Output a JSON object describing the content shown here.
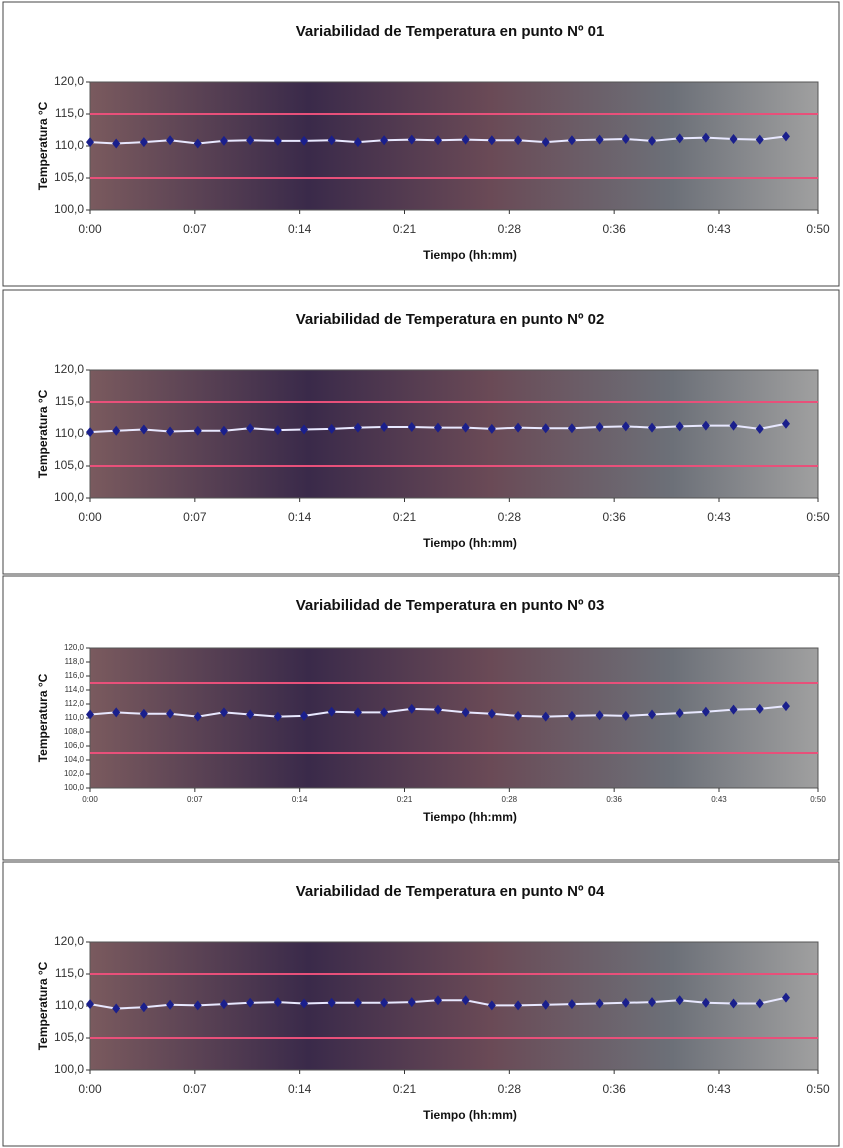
{
  "chart_data": [
    {
      "type": "line",
      "title": "Variabilidad de Temperatura en punto Nº 01",
      "y_label": "Temperatura °C",
      "x_label": "Tiempo (hh:mm)",
      "x": [
        0,
        1.8,
        3.7,
        5.5,
        7.4,
        9.2,
        11,
        12.9,
        14.7,
        16.6,
        18.4,
        20.2,
        22.1,
        23.9,
        25.8,
        27.6,
        29.4,
        31.3,
        33.1,
        35,
        36.8,
        38.6,
        40.5,
        42.3,
        44.2,
        46,
        47.8
      ],
      "values": [
        110.6,
        110.4,
        110.6,
        110.9,
        110.4,
        110.8,
        110.9,
        110.8,
        110.8,
        110.9,
        110.6,
        110.9,
        111.0,
        110.9,
        111.0,
        110.9,
        110.9,
        110.6,
        110.9,
        111.0,
        111.1,
        110.8,
        111.2,
        111.3,
        111.1,
        111.0,
        111.5
      ],
      "color": "#1a1f8c",
      "reference_lines": [
        105,
        115
      ],
      "reference_color": "#e8507a",
      "xlim": [
        0,
        50
      ],
      "xticks": [
        {
          "value": 0,
          "label": "0:00"
        },
        {
          "value": 7.2,
          "label": "0:07"
        },
        {
          "value": 14.4,
          "label": "0:14"
        },
        {
          "value": 21.6,
          "label": "0:21"
        },
        {
          "value": 28.8,
          "label": "0:28"
        },
        {
          "value": 36,
          "label": "0:36"
        },
        {
          "value": 43.2,
          "label": "0:43"
        },
        {
          "value": 50,
          "label": "0:50"
        }
      ],
      "ylim": [
        100,
        120
      ],
      "yticks": [
        {
          "value": 100,
          "label": "100,0"
        },
        {
          "value": 105,
          "label": "105,0"
        },
        {
          "value": 110,
          "label": "110,0"
        },
        {
          "value": 115,
          "label": "115,0"
        },
        {
          "value": 120,
          "label": "120,0"
        }
      ]
    },
    {
      "type": "line",
      "title": "Variabilidad de Temperatura en punto Nº 02",
      "y_label": "Temperatura °C",
      "x_label": "Tiempo (hh:mm)",
      "x": [
        0,
        1.8,
        3.7,
        5.5,
        7.4,
        9.2,
        11,
        12.9,
        14.7,
        16.6,
        18.4,
        20.2,
        22.1,
        23.9,
        25.8,
        27.6,
        29.4,
        31.3,
        33.1,
        35,
        36.8,
        38.6,
        40.5,
        42.3,
        44.2,
        46,
        47.8
      ],
      "values": [
        110.3,
        110.5,
        110.7,
        110.4,
        110.5,
        110.5,
        110.9,
        110.6,
        110.7,
        110.8,
        111.0,
        111.1,
        111.1,
        111.0,
        111.0,
        110.8,
        111.0,
        110.9,
        110.9,
        111.1,
        111.2,
        111.0,
        111.2,
        111.3,
        111.3,
        110.8,
        111.6
      ],
      "color": "#1a1f8c",
      "reference_lines": [
        105,
        115
      ],
      "reference_color": "#e8507a",
      "xlim": [
        0,
        50
      ],
      "xticks": [
        {
          "value": 0,
          "label": "0:00"
        },
        {
          "value": 7.2,
          "label": "0:07"
        },
        {
          "value": 14.4,
          "label": "0:14"
        },
        {
          "value": 21.6,
          "label": "0:21"
        },
        {
          "value": 28.8,
          "label": "0:28"
        },
        {
          "value": 36,
          "label": "0:36"
        },
        {
          "value": 43.2,
          "label": "0:43"
        },
        {
          "value": 50,
          "label": "0:50"
        }
      ],
      "ylim": [
        100,
        120
      ],
      "yticks": [
        {
          "value": 100,
          "label": "100,0"
        },
        {
          "value": 105,
          "label": "105,0"
        },
        {
          "value": 110,
          "label": "110,0"
        },
        {
          "value": 115,
          "label": "115,0"
        },
        {
          "value": 120,
          "label": "120,0"
        }
      ]
    },
    {
      "type": "line",
      "title": "Variabilidad de Temperatura en punto Nº 03",
      "y_label": "Temperatura °C",
      "x_label": "Tiempo (hh:mm)",
      "x": [
        0,
        1.8,
        3.7,
        5.5,
        7.4,
        9.2,
        11,
        12.9,
        14.7,
        16.6,
        18.4,
        20.2,
        22.1,
        23.9,
        25.8,
        27.6,
        29.4,
        31.3,
        33.1,
        35,
        36.8,
        38.6,
        40.5,
        42.3,
        44.2,
        46,
        47.8
      ],
      "values": [
        110.5,
        110.8,
        110.6,
        110.6,
        110.2,
        110.8,
        110.5,
        110.2,
        110.3,
        110.9,
        110.8,
        110.8,
        111.3,
        111.2,
        110.8,
        110.6,
        110.3,
        110.2,
        110.3,
        110.4,
        110.3,
        110.5,
        110.7,
        110.9,
        111.2,
        111.3,
        111.7
      ],
      "color": "#1a1f8c",
      "reference_lines": [
        105,
        115
      ],
      "reference_color": "#e8507a",
      "xlim": [
        0,
        50
      ],
      "xticks": [
        {
          "value": 0,
          "label": "0:00"
        },
        {
          "value": 7.2,
          "label": "0:07"
        },
        {
          "value": 14.4,
          "label": "0:14"
        },
        {
          "value": 21.6,
          "label": "0:21"
        },
        {
          "value": 28.8,
          "label": "0:28"
        },
        {
          "value": 36,
          "label": "0:36"
        },
        {
          "value": 43.2,
          "label": "0:43"
        },
        {
          "value": 50,
          "label": "0:50"
        }
      ],
      "ylim": [
        100,
        120
      ],
      "yticks": [
        {
          "value": 100,
          "label": "100,0"
        },
        {
          "value": 102,
          "label": "102,0"
        },
        {
          "value": 104,
          "label": "104,0"
        },
        {
          "value": 106,
          "label": "106,0"
        },
        {
          "value": 108,
          "label": "108,0"
        },
        {
          "value": 110,
          "label": "110,0"
        },
        {
          "value": 112,
          "label": "112,0"
        },
        {
          "value": 114,
          "label": "114,0"
        },
        {
          "value": 116,
          "label": "116,0"
        },
        {
          "value": 118,
          "label": "118,0"
        },
        {
          "value": 120,
          "label": "120,0"
        }
      ]
    },
    {
      "type": "line",
      "title": "Variabilidad de Temperatura en punto Nº 04",
      "y_label": "Temperatura °C",
      "x_label": "Tiempo (hh:mm)",
      "x": [
        0,
        1.8,
        3.7,
        5.5,
        7.4,
        9.2,
        11,
        12.9,
        14.7,
        16.6,
        18.4,
        20.2,
        22.1,
        23.9,
        25.8,
        27.6,
        29.4,
        31.3,
        33.1,
        35,
        36.8,
        38.6,
        40.5,
        42.3,
        44.2,
        46,
        47.8
      ],
      "values": [
        110.3,
        109.6,
        109.8,
        110.2,
        110.1,
        110.3,
        110.5,
        110.6,
        110.4,
        110.5,
        110.5,
        110.5,
        110.6,
        110.9,
        110.9,
        110.1,
        110.1,
        110.2,
        110.3,
        110.4,
        110.5,
        110.6,
        110.9,
        110.5,
        110.4,
        110.4,
        111.3
      ],
      "color": "#1a1f8c",
      "reference_lines": [
        105,
        115
      ],
      "reference_color": "#e8507a",
      "xlim": [
        0,
        50
      ],
      "xticks": [
        {
          "value": 0,
          "label": "0:00"
        },
        {
          "value": 7.2,
          "label": "0:07"
        },
        {
          "value": 14.4,
          "label": "0:14"
        },
        {
          "value": 21.6,
          "label": "0:21"
        },
        {
          "value": 28.8,
          "label": "0:28"
        },
        {
          "value": 36,
          "label": "0:36"
        },
        {
          "value": 43.2,
          "label": "0:43"
        },
        {
          "value": 50,
          "label": "0:50"
        }
      ],
      "ylim": [
        100,
        120
      ],
      "yticks": [
        {
          "value": 100,
          "label": "100,0"
        },
        {
          "value": 105,
          "label": "105,0"
        },
        {
          "value": 110,
          "label": "110,0"
        },
        {
          "value": 115,
          "label": "115,0"
        },
        {
          "value": 120,
          "label": "120,0"
        }
      ]
    }
  ]
}
